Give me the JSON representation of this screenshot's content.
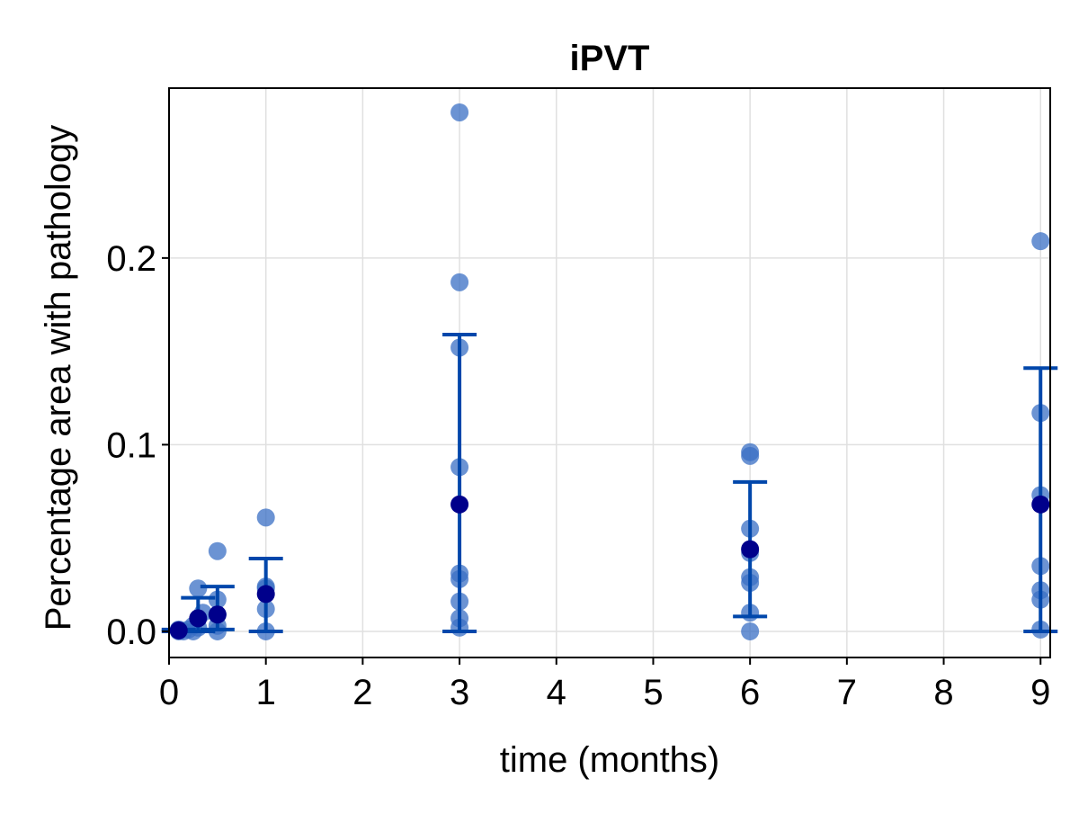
{
  "chart_data": {
    "type": "scatter",
    "title": "iPVT",
    "xlabel": "time (months)",
    "ylabel": "Percentage area with pathology",
    "xlim": [
      0,
      9.1
    ],
    "ylim": [
      -0.014,
      0.291
    ],
    "xticks": [
      "0",
      "1",
      "2",
      "3",
      "4",
      "5",
      "6",
      "7",
      "8",
      "9"
    ],
    "xtick_values": [
      0,
      1,
      2,
      3,
      4,
      5,
      6,
      7,
      8,
      9
    ],
    "yticks": [
      "0.0",
      "0.1",
      "0.2"
    ],
    "ytick_values": [
      0.0,
      0.1,
      0.2
    ],
    "grid": true,
    "colors": {
      "points": "#3a6fc4",
      "mean": "#00008b",
      "errorbar": "#0047ab",
      "grid": "#e0e0e0"
    },
    "series": [
      {
        "role": "individual",
        "points": [
          {
            "x": 0.1,
            "y": 0.0
          },
          {
            "x": 0.1,
            "y": 0.001
          },
          {
            "x": 0.15,
            "y": 0.0
          },
          {
            "x": 0.2,
            "y": 0.001
          },
          {
            "x": 0.25,
            "y": 0.0
          },
          {
            "x": 0.25,
            "y": 0.003
          },
          {
            "x": 0.3,
            "y": 0.023
          },
          {
            "x": 0.3,
            "y": 0.002
          },
          {
            "x": 0.35,
            "y": 0.01
          },
          {
            "x": 0.5,
            "y": 0.043
          },
          {
            "x": 0.5,
            "y": 0.017
          },
          {
            "x": 0.5,
            "y": 0.009
          },
          {
            "x": 0.5,
            "y": 0.003
          },
          {
            "x": 0.5,
            "y": 0.0
          },
          {
            "x": 1,
            "y": 0.061
          },
          {
            "x": 1,
            "y": 0.024
          },
          {
            "x": 1,
            "y": 0.023
          },
          {
            "x": 1,
            "y": 0.012
          },
          {
            "x": 1,
            "y": 0.0
          },
          {
            "x": 3,
            "y": 0.278
          },
          {
            "x": 3,
            "y": 0.187
          },
          {
            "x": 3,
            "y": 0.152
          },
          {
            "x": 3,
            "y": 0.088
          },
          {
            "x": 3,
            "y": 0.031
          },
          {
            "x": 3,
            "y": 0.028
          },
          {
            "x": 3,
            "y": 0.016
          },
          {
            "x": 3,
            "y": 0.007
          },
          {
            "x": 3,
            "y": 0.002
          },
          {
            "x": 6,
            "y": 0.096
          },
          {
            "x": 6,
            "y": 0.094
          },
          {
            "x": 6,
            "y": 0.055
          },
          {
            "x": 6,
            "y": 0.042
          },
          {
            "x": 6,
            "y": 0.029
          },
          {
            "x": 6,
            "y": 0.026
          },
          {
            "x": 6,
            "y": 0.01
          },
          {
            "x": 6,
            "y": 0.0
          },
          {
            "x": 9,
            "y": 0.209
          },
          {
            "x": 9,
            "y": 0.117
          },
          {
            "x": 9,
            "y": 0.073
          },
          {
            "x": 9,
            "y": 0.035
          },
          {
            "x": 9,
            "y": 0.022
          },
          {
            "x": 9,
            "y": 0.017
          },
          {
            "x": 9,
            "y": 0.001
          }
        ]
      },
      {
        "role": "mean_with_error",
        "points": [
          {
            "x": 0.1,
            "y": 0.0005,
            "low": 0.0,
            "high": 0.001
          },
          {
            "x": 0.3,
            "y": 0.007,
            "low": 0.0,
            "high": 0.018
          },
          {
            "x": 0.5,
            "y": 0.009,
            "low": 0.001,
            "high": 0.024
          },
          {
            "x": 1,
            "y": 0.02,
            "low": 0.0,
            "high": 0.039
          },
          {
            "x": 3,
            "y": 0.068,
            "low": 0.0,
            "high": 0.159
          },
          {
            "x": 6,
            "y": 0.044,
            "low": 0.008,
            "high": 0.08
          },
          {
            "x": 9,
            "y": 0.068,
            "low": 0.0,
            "high": 0.141
          }
        ]
      }
    ]
  }
}
